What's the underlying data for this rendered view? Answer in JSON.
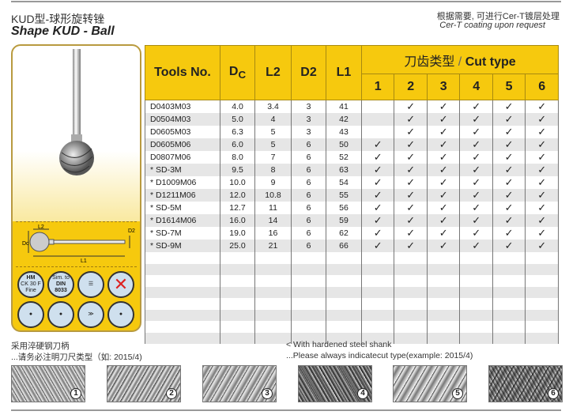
{
  "header": {
    "title_cn": "KUD型-球形旋转锉",
    "title_en": "Shape KUD - Ball",
    "coating_cn": "根据需要, 可进行Cer-T镀层处理",
    "coating_en": "Cer-T coating upon request"
  },
  "panel": {
    "icons": [
      {
        "l1": "HM",
        "l2": "CK 30 F",
        "l3": "Fine"
      },
      {
        "l1": "Sim. to",
        "l2": "DIN",
        "l3": "8033"
      }
    ],
    "dim_labels": {
      "dc": "Dc",
      "l2": "L2",
      "d2": "D2",
      "l1": "L1"
    }
  },
  "table": {
    "headers": {
      "tools": "Tools No.",
      "dc": "D",
      "dc_sub": "C",
      "l2": "L2",
      "d2": "D2",
      "l1": "L1",
      "cut_cn": "刀齿类型",
      "cut_sep": "/",
      "cut_en": "Cut type",
      "cut_nums": [
        "1",
        "2",
        "3",
        "4",
        "5",
        "6"
      ]
    },
    "check": "✓",
    "rows": [
      {
        "name": "D0403M03",
        "dc": "4.0",
        "l2": "3.4",
        "d2": "3",
        "l1": "41",
        "cuts": [
          0,
          1,
          1,
          1,
          1,
          1
        ]
      },
      {
        "name": "D0504M03",
        "dc": "5.0",
        "l2": "4",
        "d2": "3",
        "l1": "42",
        "cuts": [
          0,
          1,
          1,
          1,
          1,
          1
        ]
      },
      {
        "name": "D0605M03",
        "dc": "6.3",
        "l2": "5",
        "d2": "3",
        "l1": "43",
        "cuts": [
          0,
          1,
          1,
          1,
          1,
          1
        ]
      },
      {
        "name": "D0605M06",
        "dc": "6.0",
        "l2": "5",
        "d2": "6",
        "l1": "50",
        "cuts": [
          1,
          1,
          1,
          1,
          1,
          1
        ]
      },
      {
        "name": "D0807M06",
        "dc": "8.0",
        "l2": "7",
        "d2": "6",
        "l1": "52",
        "cuts": [
          1,
          1,
          1,
          1,
          1,
          1
        ]
      },
      {
        "name": "* SD-3M",
        "dc": "9.5",
        "l2": "8",
        "d2": "6",
        "l1": "63",
        "cuts": [
          1,
          1,
          1,
          1,
          1,
          1
        ]
      },
      {
        "name": "* D1009M06",
        "dc": "10.0",
        "l2": "9",
        "d2": "6",
        "l1": "54",
        "cuts": [
          1,
          1,
          1,
          1,
          1,
          1
        ]
      },
      {
        "name": "* D1211M06",
        "dc": "12.0",
        "l2": "10.8",
        "d2": "6",
        "l1": "55",
        "cuts": [
          1,
          1,
          1,
          1,
          1,
          1
        ]
      },
      {
        "name": "* SD-5M",
        "dc": "12.7",
        "l2": "11",
        "d2": "6",
        "l1": "56",
        "cuts": [
          1,
          1,
          1,
          1,
          1,
          1
        ]
      },
      {
        "name": "* D1614M06",
        "dc": "16.0",
        "l2": "14",
        "d2": "6",
        "l1": "59",
        "cuts": [
          1,
          1,
          1,
          1,
          1,
          1
        ]
      },
      {
        "name": "* SD-7M",
        "dc": "19.0",
        "l2": "16",
        "d2": "6",
        "l1": "62",
        "cuts": [
          1,
          1,
          1,
          1,
          1,
          1
        ]
      },
      {
        "name": "* SD-9M",
        "dc": "25.0",
        "l2": "21",
        "d2": "6",
        "l1": "66",
        "cuts": [
          1,
          1,
          1,
          1,
          1,
          1
        ]
      }
    ]
  },
  "footer": {
    "cn1": "采用淬硬钢刀柄",
    "cn2": "...请务必注明刀尺类型（如: 2015/4)",
    "en1": "< With hardened steel shank",
    "en2": "...Please always indicatecut type(example: 2015/4)",
    "cut_images": [
      "1",
      "2",
      "3",
      "4",
      "5",
      "6"
    ]
  }
}
